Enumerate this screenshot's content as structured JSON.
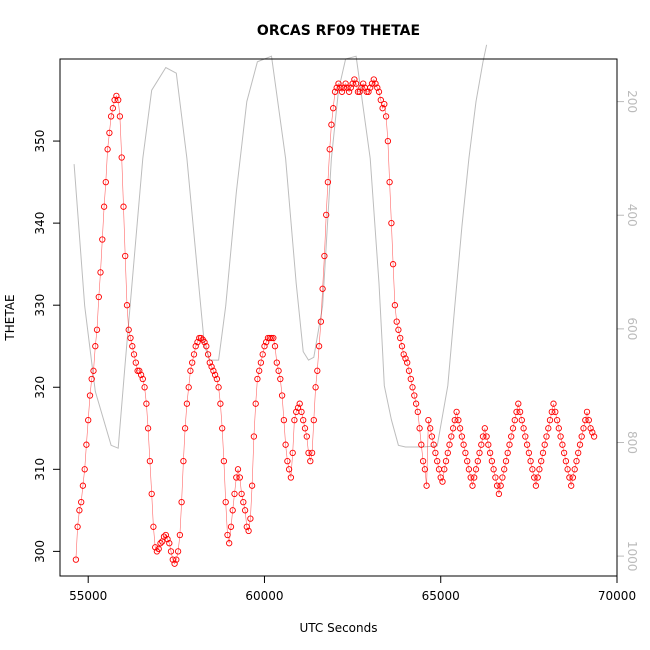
{
  "chart_data": {
    "type": "scatter",
    "title": "ORCAS RF09 THETAE",
    "xlabel": "UTC Seconds",
    "ylabel": "THETAE",
    "xlim": [
      54200,
      70000
    ],
    "ylim": [
      297,
      360
    ],
    "x_ticks": [
      55000,
      60000,
      65000,
      70000
    ],
    "x_tick_labels": [
      "55000",
      "60000",
      "65000",
      "70000"
    ],
    "y_ticks": [
      300,
      310,
      320,
      330,
      340,
      350
    ],
    "y_tick_labels": [
      "300",
      "310",
      "320",
      "330",
      "340",
      "350"
    ],
    "y2_range_inverted": [
      125,
      1035
    ],
    "y2_ticks": [
      200,
      400,
      600,
      800,
      1000
    ],
    "y2_tick_labels": [
      "200",
      "400",
      "600",
      "800",
      "1000"
    ],
    "grid": false,
    "series": [
      {
        "color": "#ff0000",
        "marker": "open-circle",
        "points": [
          [
            54650,
            299
          ],
          [
            54700,
            303
          ],
          [
            54750,
            305
          ],
          [
            54800,
            306
          ],
          [
            54850,
            308
          ],
          [
            54900,
            310
          ],
          [
            54950,
            313
          ],
          [
            55000,
            316
          ],
          [
            55050,
            319
          ],
          [
            55100,
            321
          ],
          [
            55150,
            322
          ],
          [
            55200,
            325
          ],
          [
            55250,
            327
          ],
          [
            55300,
            331
          ],
          [
            55350,
            334
          ],
          [
            55400,
            338
          ],
          [
            55450,
            342
          ],
          [
            55500,
            345
          ],
          [
            55550,
            349
          ],
          [
            55600,
            351
          ],
          [
            55650,
            353
          ],
          [
            55700,
            354
          ],
          [
            55750,
            355
          ],
          [
            55800,
            355.5
          ],
          [
            55850,
            355
          ],
          [
            55900,
            353
          ],
          [
            55950,
            348
          ],
          [
            56000,
            342
          ],
          [
            56050,
            336
          ],
          [
            56100,
            330
          ],
          [
            56150,
            327
          ],
          [
            56200,
            326
          ],
          [
            56250,
            325
          ],
          [
            56300,
            324
          ],
          [
            56350,
            323
          ],
          [
            56400,
            322
          ],
          [
            56450,
            322
          ],
          [
            56500,
            321.5
          ],
          [
            56550,
            321
          ],
          [
            56600,
            320
          ],
          [
            56650,
            318
          ],
          [
            56700,
            315
          ],
          [
            56750,
            311
          ],
          [
            56800,
            307
          ],
          [
            56850,
            303
          ],
          [
            56900,
            300.5
          ],
          [
            56950,
            300
          ],
          [
            57000,
            300.3
          ],
          [
            57050,
            301
          ],
          [
            57100,
            301.2
          ],
          [
            57150,
            301.8
          ],
          [
            57200,
            302
          ],
          [
            57250,
            301.5
          ],
          [
            57300,
            301
          ],
          [
            57350,
            300
          ],
          [
            57400,
            299
          ],
          [
            57450,
            298.5
          ],
          [
            57500,
            299
          ],
          [
            57550,
            300
          ],
          [
            57600,
            302
          ],
          [
            57650,
            306
          ],
          [
            57700,
            311
          ],
          [
            57750,
            315
          ],
          [
            57800,
            318
          ],
          [
            57850,
            320
          ],
          [
            57900,
            322
          ],
          [
            57950,
            323
          ],
          [
            58000,
            324
          ],
          [
            58050,
            325
          ],
          [
            58100,
            325.5
          ],
          [
            58150,
            326
          ],
          [
            58200,
            326
          ],
          [
            58250,
            325.8
          ],
          [
            58300,
            325.5
          ],
          [
            58350,
            325
          ],
          [
            58400,
            324
          ],
          [
            58450,
            323
          ],
          [
            58500,
            322.5
          ],
          [
            58550,
            322
          ],
          [
            58600,
            321.5
          ],
          [
            58650,
            321
          ],
          [
            58700,
            320
          ],
          [
            58750,
            318
          ],
          [
            58800,
            315
          ],
          [
            58850,
            311
          ],
          [
            58900,
            306
          ],
          [
            58950,
            302
          ],
          [
            59000,
            301
          ],
          [
            59050,
            303
          ],
          [
            59100,
            305
          ],
          [
            59150,
            307
          ],
          [
            59200,
            309
          ],
          [
            59250,
            310
          ],
          [
            59300,
            309
          ],
          [
            59350,
            307
          ],
          [
            59400,
            306
          ],
          [
            59450,
            305
          ],
          [
            59500,
            303
          ],
          [
            59550,
            302.5
          ],
          [
            59600,
            304
          ],
          [
            59650,
            308
          ],
          [
            59700,
            314
          ],
          [
            59750,
            318
          ],
          [
            59800,
            321
          ],
          [
            59850,
            322
          ],
          [
            59900,
            323
          ],
          [
            59950,
            324
          ],
          [
            60000,
            325
          ],
          [
            60050,
            325.5
          ],
          [
            60100,
            326
          ],
          [
            60150,
            326
          ],
          [
            60200,
            326
          ],
          [
            60250,
            326
          ],
          [
            60300,
            325
          ],
          [
            60350,
            323
          ],
          [
            60400,
            322
          ],
          [
            60450,
            321
          ],
          [
            60500,
            319
          ],
          [
            60550,
            316
          ],
          [
            60600,
            313
          ],
          [
            60650,
            311
          ],
          [
            60700,
            310
          ],
          [
            60750,
            309
          ],
          [
            60800,
            312
          ],
          [
            60850,
            316
          ],
          [
            60900,
            317
          ],
          [
            60950,
            317.5
          ],
          [
            61000,
            318
          ],
          [
            61050,
            317
          ],
          [
            61100,
            316
          ],
          [
            61150,
            315
          ],
          [
            61200,
            314
          ],
          [
            61250,
            312
          ],
          [
            61300,
            311
          ],
          [
            61350,
            312
          ],
          [
            61400,
            316
          ],
          [
            61450,
            320
          ],
          [
            61500,
            322
          ],
          [
            61550,
            325
          ],
          [
            61600,
            328
          ],
          [
            61650,
            332
          ],
          [
            61700,
            336
          ],
          [
            61750,
            341
          ],
          [
            61800,
            345
          ],
          [
            61850,
            349
          ],
          [
            61900,
            352
          ],
          [
            61950,
            354
          ],
          [
            62000,
            356
          ],
          [
            62050,
            356.5
          ],
          [
            62100,
            357
          ],
          [
            62150,
            356.5
          ],
          [
            62200,
            356
          ],
          [
            62250,
            356.5
          ],
          [
            62300,
            357
          ],
          [
            62350,
            356.5
          ],
          [
            62400,
            356
          ],
          [
            62450,
            356.5
          ],
          [
            62500,
            357
          ],
          [
            62550,
            357.5
          ],
          [
            62600,
            357
          ],
          [
            62650,
            356
          ],
          [
            62700,
            356
          ],
          [
            62750,
            356.5
          ],
          [
            62800,
            357
          ],
          [
            62850,
            356.5
          ],
          [
            62900,
            356
          ],
          [
            62950,
            356
          ],
          [
            63000,
            356.5
          ],
          [
            63050,
            357
          ],
          [
            63100,
            357.5
          ],
          [
            63150,
            357
          ],
          [
            63200,
            356.5
          ],
          [
            63250,
            356
          ],
          [
            63300,
            355
          ],
          [
            63350,
            354
          ],
          [
            63400,
            354.5
          ],
          [
            63450,
            353
          ],
          [
            63500,
            350
          ],
          [
            63550,
            345
          ],
          [
            63600,
            340
          ],
          [
            63650,
            335
          ],
          [
            63700,
            330
          ],
          [
            63750,
            328
          ],
          [
            63800,
            327
          ],
          [
            63850,
            326
          ],
          [
            63900,
            325
          ],
          [
            63950,
            324
          ],
          [
            64000,
            323.5
          ],
          [
            64050,
            323
          ],
          [
            64100,
            322
          ],
          [
            64150,
            321
          ],
          [
            64200,
            320
          ],
          [
            64250,
            319
          ],
          [
            64300,
            318
          ],
          [
            64350,
            317
          ],
          [
            64400,
            315
          ],
          [
            64450,
            313
          ],
          [
            64500,
            311
          ],
          [
            64550,
            310
          ],
          [
            64600,
            308
          ],
          [
            64650,
            316
          ],
          [
            64700,
            315
          ],
          [
            64750,
            314
          ],
          [
            64800,
            313
          ],
          [
            64850,
            312
          ],
          [
            64900,
            311
          ],
          [
            64950,
            310
          ],
          [
            65000,
            309
          ],
          [
            65050,
            308.5
          ],
          [
            65100,
            310
          ],
          [
            65150,
            311
          ],
          [
            65200,
            312
          ],
          [
            65250,
            313
          ],
          [
            65300,
            314
          ],
          [
            65350,
            315
          ],
          [
            65400,
            316
          ],
          [
            65450,
            317
          ],
          [
            65500,
            316
          ],
          [
            65550,
            315
          ],
          [
            65600,
            314
          ],
          [
            65650,
            313
          ],
          [
            65700,
            312
          ],
          [
            65750,
            311
          ],
          [
            65800,
            310
          ],
          [
            65850,
            309
          ],
          [
            65900,
            308
          ],
          [
            65950,
            309
          ],
          [
            66000,
            310
          ],
          [
            66050,
            311
          ],
          [
            66100,
            312
          ],
          [
            66150,
            313
          ],
          [
            66200,
            314
          ],
          [
            66250,
            315
          ],
          [
            66300,
            314
          ],
          [
            66350,
            313
          ],
          [
            66400,
            312
          ],
          [
            66450,
            311
          ],
          [
            66500,
            310
          ],
          [
            66550,
            309
          ],
          [
            66600,
            308
          ],
          [
            66650,
            307
          ],
          [
            66700,
            308
          ],
          [
            66750,
            309
          ],
          [
            66800,
            310
          ],
          [
            66850,
            311
          ],
          [
            66900,
            312
          ],
          [
            66950,
            313
          ],
          [
            67000,
            314
          ],
          [
            67050,
            315
          ],
          [
            67100,
            316
          ],
          [
            67150,
            317
          ],
          [
            67200,
            318
          ],
          [
            67250,
            317
          ],
          [
            67300,
            316
          ],
          [
            67350,
            315
          ],
          [
            67400,
            314
          ],
          [
            67450,
            313
          ],
          [
            67500,
            312
          ],
          [
            67550,
            311
          ],
          [
            67600,
            310
          ],
          [
            67650,
            309
          ],
          [
            67700,
            308
          ],
          [
            67750,
            309
          ],
          [
            67800,
            310
          ],
          [
            67850,
            311
          ],
          [
            67900,
            312
          ],
          [
            67950,
            313
          ],
          [
            68000,
            314
          ],
          [
            68050,
            315
          ],
          [
            68100,
            316
          ],
          [
            68150,
            317
          ],
          [
            68200,
            318
          ],
          [
            68250,
            317
          ],
          [
            68300,
            316
          ],
          [
            68350,
            315
          ],
          [
            68400,
            314
          ],
          [
            68450,
            313
          ],
          [
            68500,
            312
          ],
          [
            68550,
            311
          ],
          [
            68600,
            310
          ],
          [
            68650,
            309
          ],
          [
            68700,
            308
          ],
          [
            68750,
            309
          ],
          [
            68800,
            310
          ],
          [
            68850,
            311
          ],
          [
            68900,
            312
          ],
          [
            68950,
            313
          ],
          [
            69000,
            314
          ],
          [
            69050,
            315
          ],
          [
            69100,
            316
          ],
          [
            69150,
            317
          ],
          [
            69200,
            316
          ],
          [
            69250,
            315
          ],
          [
            69300,
            314.5
          ],
          [
            69350,
            314
          ]
        ]
      }
    ]
  }
}
